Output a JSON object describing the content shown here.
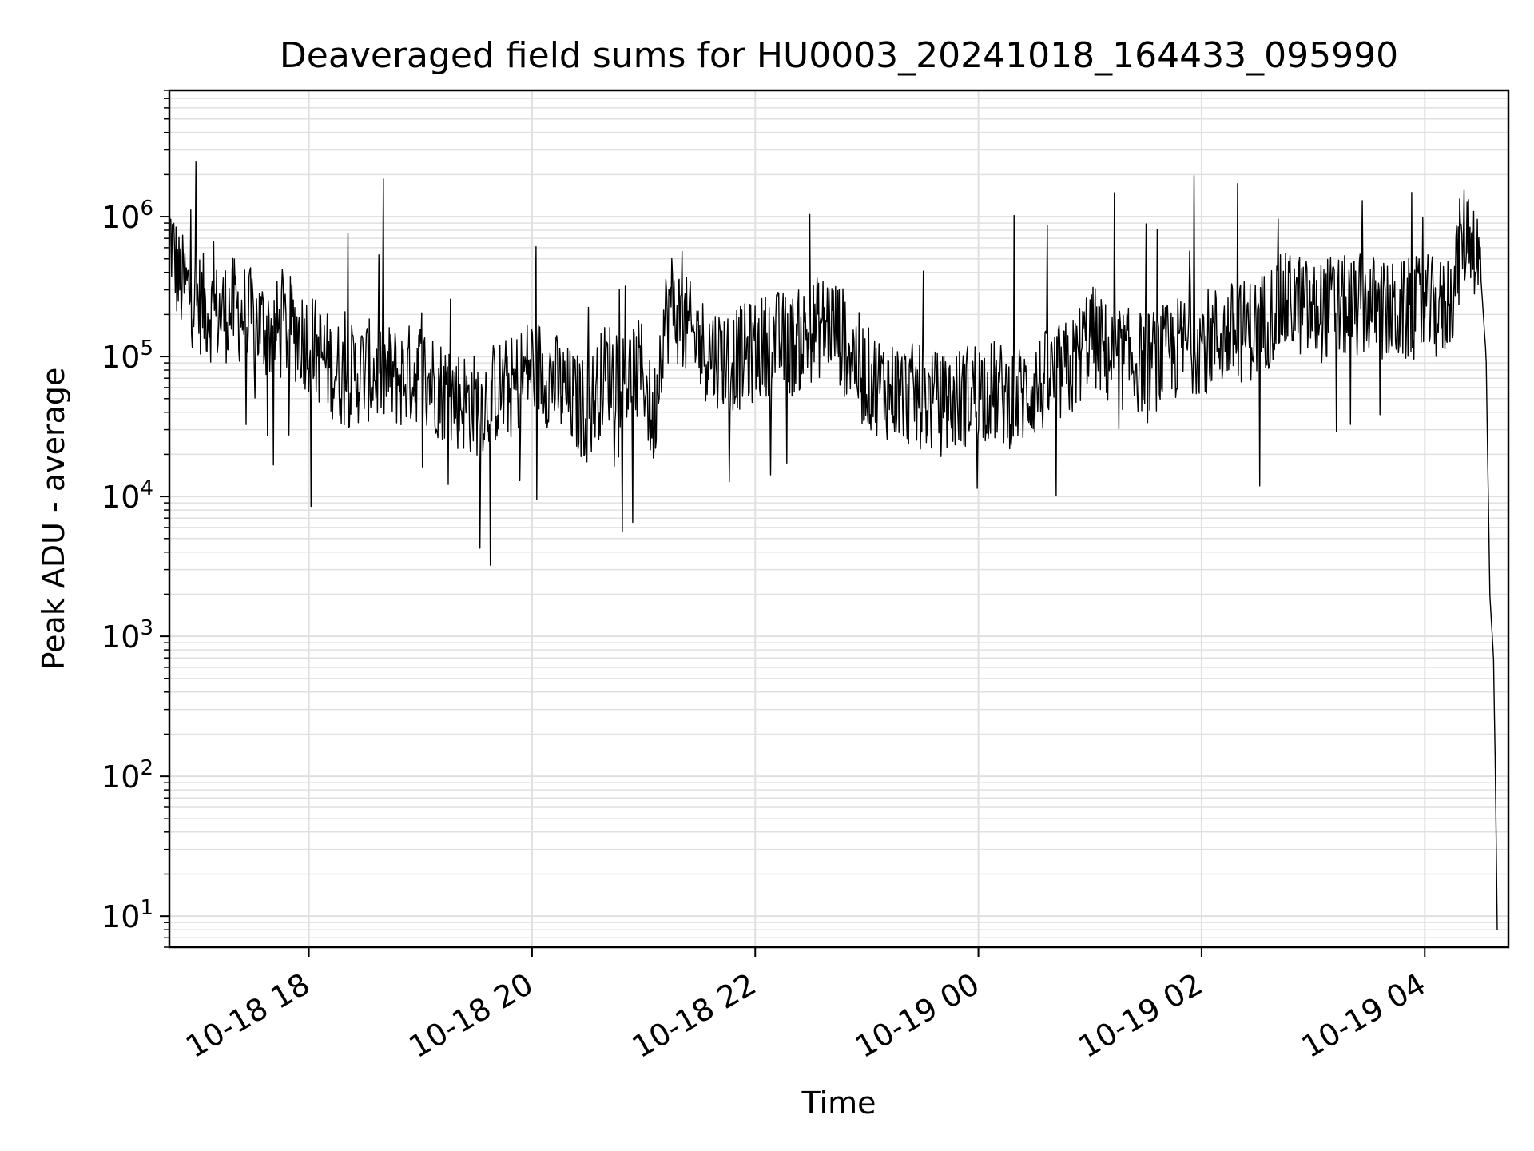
{
  "chart_data": {
    "type": "line",
    "title": "Deaveraged field sums for HU0003_20241018_164433_095990",
    "xlabel": "Time",
    "ylabel": "Peak ADU - average",
    "y_scale": "log",
    "ylim": [
      6,
      8000000
    ],
    "xlim": [
      "2024-10-18 16:45",
      "2024-10-19 04:45"
    ],
    "grid": true,
    "grid_color": "#e0e0e0",
    "line_color": "#000000",
    "x_ticks": [
      {
        "value": "2024-10-18 18:00",
        "label": "10-18 18"
      },
      {
        "value": "2024-10-18 20:00",
        "label": "10-18 20"
      },
      {
        "value": "2024-10-18 22:00",
        "label": "10-18 22"
      },
      {
        "value": "2024-10-19 00:00",
        "label": "10-19 00"
      },
      {
        "value": "2024-10-19 02:00",
        "label": "10-19 02"
      },
      {
        "value": "2024-10-19 04:00",
        "label": "10-19 04"
      }
    ],
    "y_ticks": [
      {
        "value": 10,
        "base": "10",
        "exp": "1"
      },
      {
        "value": 100,
        "base": "10",
        "exp": "2"
      },
      {
        "value": 1000,
        "base": "10",
        "exp": "3"
      },
      {
        "value": 10000,
        "base": "10",
        "exp": "4"
      },
      {
        "value": 100000,
        "base": "10",
        "exp": "5"
      },
      {
        "value": 1000000,
        "base": "10",
        "exp": "6"
      }
    ],
    "series": [
      {
        "x": [
          "2024-10-18 16:45",
          "2024-10-18 16:50",
          "2024-10-18 17:00",
          "2024-10-18 17:10",
          "2024-10-18 17:20",
          "2024-10-18 17:30",
          "2024-10-18 17:40",
          "2024-10-18 17:50",
          "2024-10-18 18:00",
          "2024-10-18 18:10",
          "2024-10-18 18:20",
          "2024-10-18 18:30",
          "2024-10-18 18:40",
          "2024-10-18 18:50",
          "2024-10-18 19:00",
          "2024-10-18 19:10",
          "2024-10-18 19:20",
          "2024-10-18 19:30",
          "2024-10-18 19:40",
          "2024-10-18 19:50",
          "2024-10-18 20:00",
          "2024-10-18 20:10",
          "2024-10-18 20:20",
          "2024-10-18 20:30",
          "2024-10-18 20:40",
          "2024-10-18 20:50",
          "2024-10-18 21:00",
          "2024-10-18 21:05",
          "2024-10-18 21:10",
          "2024-10-18 21:15",
          "2024-10-18 21:20",
          "2024-10-18 21:30",
          "2024-10-18 21:40",
          "2024-10-18 21:50",
          "2024-10-18 22:00",
          "2024-10-18 22:10",
          "2024-10-18 22:20",
          "2024-10-18 22:30",
          "2024-10-18 22:40",
          "2024-10-18 22:50",
          "2024-10-18 23:00",
          "2024-10-18 23:10",
          "2024-10-18 23:20",
          "2024-10-18 23:30",
          "2024-10-18 23:40",
          "2024-10-18 23:50",
          "2024-10-19 00:00",
          "2024-10-19 00:10",
          "2024-10-19 00:20",
          "2024-10-19 00:30",
          "2024-10-19 00:40",
          "2024-10-19 00:50",
          "2024-10-19 01:00",
          "2024-10-19 01:10",
          "2024-10-19 01:20",
          "2024-10-19 01:30",
          "2024-10-19 01:40",
          "2024-10-19 01:50",
          "2024-10-19 02:00",
          "2024-10-19 02:10",
          "2024-10-19 02:20",
          "2024-10-19 02:30",
          "2024-10-19 02:40",
          "2024-10-19 02:50",
          "2024-10-19 03:00",
          "2024-10-19 03:10",
          "2024-10-19 03:20",
          "2024-10-19 03:30",
          "2024-10-19 03:40",
          "2024-10-19 03:50",
          "2024-10-19 04:00",
          "2024-10-19 04:10",
          "2024-10-19 04:15",
          "2024-10-19 04:20",
          "2024-10-19 04:25",
          "2024-10-19 04:30",
          "2024-10-19 04:33",
          "2024-10-19 04:35",
          "2024-10-19 04:37",
          "2024-10-19 04:38",
          "2024-10-19 04:39"
        ],
        "values": [
          800000,
          350000,
          250000,
          200000,
          220000,
          180000,
          150000,
          160000,
          130000,
          90000,
          70000,
          80000,
          75000,
          70000,
          80000,
          60000,
          50000,
          45000,
          55000,
          60000,
          90000,
          70000,
          50000,
          40000,
          80000,
          70000,
          80000,
          30000,
          150000,
          250000,
          180000,
          120000,
          100000,
          95000,
          110000,
          130000,
          120000,
          150000,
          180000,
          120000,
          70000,
          60000,
          55000,
          50000,
          45000,
          50000,
          60000,
          55000,
          50000,
          60000,
          70000,
          80000,
          150000,
          100000,
          95000,
          90000,
          100000,
          120000,
          130000,
          140000,
          150000,
          160000,
          220000,
          250000,
          200000,
          230000,
          220000,
          240000,
          200000,
          210000,
          230000,
          210000,
          300000,
          700000,
          800000,
          400000,
          100000,
          2000,
          700,
          100,
          8
        ]
      }
    ]
  }
}
